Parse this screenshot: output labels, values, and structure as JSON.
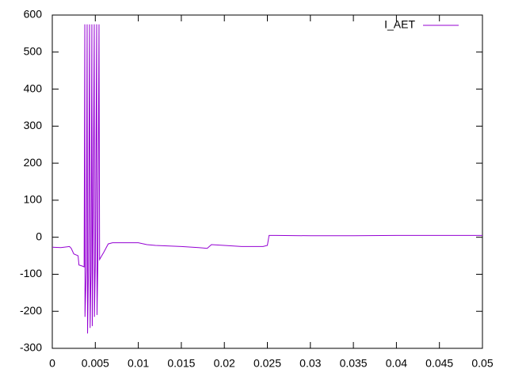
{
  "chart_data": {
    "type": "line",
    "x": [
      0,
      0.001,
      0.002,
      0.0022,
      0.0025,
      0.003,
      0.0031,
      0.0035,
      0.0037,
      0.00378,
      0.0038,
      0.00395,
      0.00405,
      0.0041,
      0.0042,
      0.00433,
      0.0044,
      0.0045,
      0.0046,
      0.00465,
      0.0047,
      0.00488,
      0.0049,
      0.005,
      0.00516,
      0.0052,
      0.0053,
      0.00543,
      0.0055,
      0.006,
      0.0065,
      0.007,
      0.01,
      0.011,
      0.012,
      0.015,
      0.017,
      0.018,
      0.0185,
      0.02,
      0.022,
      0.0245,
      0.025,
      0.0252,
      0.026,
      0.03,
      0.035,
      0.04,
      0.045,
      0.05
    ],
    "series": [
      {
        "name": "I_AET",
        "color": "#9400d3",
        "values": [
          -27,
          -28,
          -25,
          -30,
          -45,
          -50,
          -75,
          -78,
          -80,
          575,
          -215,
          -90,
          575,
          -260,
          -100,
          575,
          -245,
          -95,
          575,
          -240,
          -85,
          575,
          -215,
          -75,
          575,
          -210,
          -65,
          575,
          -60,
          -40,
          -18,
          -15,
          -15,
          -20,
          -22,
          -25,
          -28,
          -30,
          -20,
          -22,
          -25,
          -25,
          -22,
          5,
          5,
          4,
          4,
          5,
          5,
          5
        ]
      }
    ],
    "xlim": [
      0,
      0.05
    ],
    "xticks": [
      0,
      0.005,
      0.01,
      0.015,
      0.02,
      0.025,
      0.03,
      0.035,
      0.04,
      0.045,
      0.05
    ],
    "ylim": [
      -300,
      600
    ],
    "yticks": [
      -300,
      -200,
      -100,
      0,
      100,
      200,
      300,
      400,
      500,
      600
    ],
    "legend": "top-right"
  }
}
